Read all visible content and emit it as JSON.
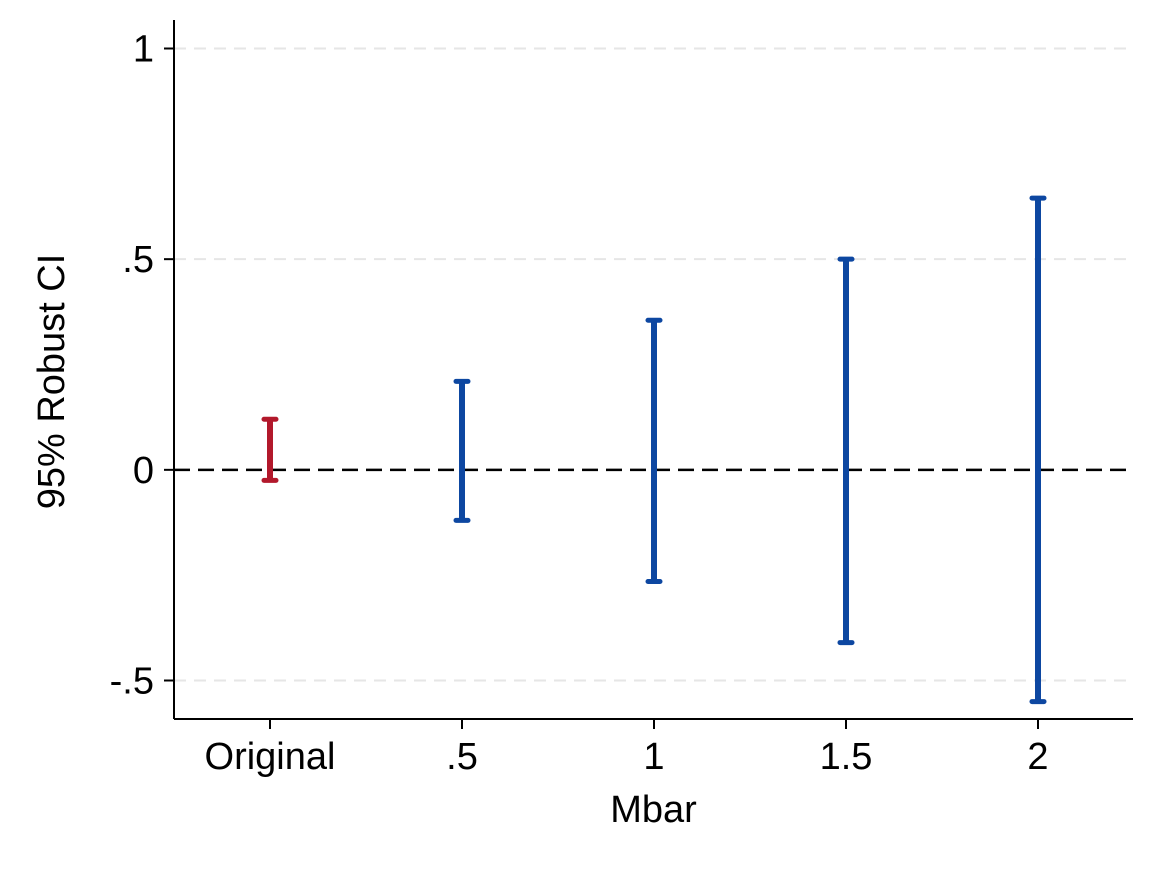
{
  "chart_data": {
    "type": "errorbar",
    "title": "",
    "xlabel": "Mbar",
    "ylabel": "95% Robust CI",
    "categories": [
      "Original",
      ".5",
      "1",
      "1.5",
      "2"
    ],
    "series": [
      {
        "color": "#b2182b",
        "points": [
          {
            "category": "Original",
            "lower": -0.025,
            "upper": 0.12
          }
        ]
      },
      {
        "color": "#0d47a1",
        "points": [
          {
            "category": ".5",
            "lower": -0.12,
            "upper": 0.21
          },
          {
            "category": "1",
            "lower": -0.265,
            "upper": 0.355
          },
          {
            "category": "1.5",
            "lower": -0.41,
            "upper": 0.5
          },
          {
            "category": "2",
            "lower": -0.55,
            "upper": 0.645
          }
        ]
      }
    ],
    "ylim": [
      -0.6,
      1.0
    ],
    "yticks": [
      {
        "value": -0.5,
        "label": "-.5"
      },
      {
        "value": 0,
        "label": "0"
      },
      {
        "value": 0.5,
        "label": ".5"
      },
      {
        "value": 1,
        "label": "1"
      }
    ],
    "grid": true,
    "reference_line": {
      "value": 0,
      "style": "dashed",
      "color": "#000000"
    },
    "legend": "none"
  }
}
